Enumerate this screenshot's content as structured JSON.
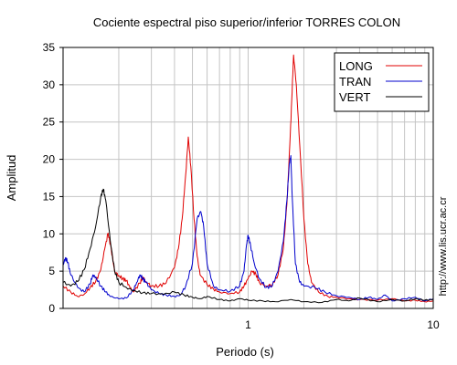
{
  "chart_data": {
    "type": "line",
    "title": "Cociente espectral piso superior/inferior  TORRES COLON",
    "xlabel": "Periodo (s)",
    "ylabel": "Amplitud",
    "x_scale": "log",
    "xlim": [
      0.1,
      10
    ],
    "ylim": [
      0,
      35
    ],
    "yticks": [
      0,
      5,
      10,
      15,
      20,
      25,
      30,
      35
    ],
    "xtick_labels": [
      {
        "value": 1,
        "label": "1"
      },
      {
        "value": 10,
        "label": "10"
      }
    ],
    "grid": true,
    "legend_position": "top-right",
    "series": [
      {
        "name": "LONG",
        "color": "#e00000",
        "points": [
          [
            0.1,
            3.0
          ],
          [
            0.11,
            2.2
          ],
          [
            0.12,
            1.6
          ],
          [
            0.13,
            1.9
          ],
          [
            0.14,
            2.8
          ],
          [
            0.15,
            3.6
          ],
          [
            0.16,
            5.2
          ],
          [
            0.168,
            8.0
          ],
          [
            0.175,
            10.1
          ],
          [
            0.182,
            8.0
          ],
          [
            0.19,
            5.0
          ],
          [
            0.2,
            4.4
          ],
          [
            0.21,
            4.0
          ],
          [
            0.22,
            3.7
          ],
          [
            0.23,
            2.8
          ],
          [
            0.24,
            2.2
          ],
          [
            0.26,
            3.4
          ],
          [
            0.27,
            4.2
          ],
          [
            0.28,
            3.6
          ],
          [
            0.3,
            3.0
          ],
          [
            0.33,
            3.0
          ],
          [
            0.36,
            3.4
          ],
          [
            0.4,
            5.5
          ],
          [
            0.42,
            8.0
          ],
          [
            0.44,
            12.0
          ],
          [
            0.46,
            18.0
          ],
          [
            0.475,
            23.0
          ],
          [
            0.49,
            19.0
          ],
          [
            0.51,
            12.0
          ],
          [
            0.53,
            7.0
          ],
          [
            0.55,
            4.5
          ],
          [
            0.6,
            3.2
          ],
          [
            0.65,
            2.6
          ],
          [
            0.7,
            2.2
          ],
          [
            0.8,
            2.0
          ],
          [
            0.9,
            2.2
          ],
          [
            0.95,
            3.0
          ],
          [
            1.0,
            4.0
          ],
          [
            1.05,
            5.0
          ],
          [
            1.1,
            4.6
          ],
          [
            1.15,
            3.5
          ],
          [
            1.25,
            3.0
          ],
          [
            1.35,
            3.2
          ],
          [
            1.45,
            4.5
          ],
          [
            1.55,
            8.0
          ],
          [
            1.62,
            14.0
          ],
          [
            1.68,
            22.0
          ],
          [
            1.72,
            28.0
          ],
          [
            1.76,
            34.0
          ],
          [
            1.82,
            30.0
          ],
          [
            1.9,
            22.0
          ],
          [
            2.0,
            12.0
          ],
          [
            2.1,
            6.0
          ],
          [
            2.2,
            3.5
          ],
          [
            2.4,
            2.2
          ],
          [
            2.7,
            1.6
          ],
          [
            3.0,
            1.5
          ],
          [
            3.5,
            1.3
          ],
          [
            4.0,
            1.2
          ],
          [
            5.0,
            1.1
          ],
          [
            6.0,
            1.3
          ],
          [
            7.0,
            1.0
          ],
          [
            8.0,
            1.1
          ],
          [
            9.0,
            0.9
          ],
          [
            10.0,
            1.0
          ]
        ]
      },
      {
        "name": "TRAN",
        "color": "#0000cc",
        "points": [
          [
            0.1,
            5.8
          ],
          [
            0.103,
            6.8
          ],
          [
            0.106,
            6.2
          ],
          [
            0.11,
            4.5
          ],
          [
            0.12,
            2.8
          ],
          [
            0.13,
            2.2
          ],
          [
            0.14,
            3.3
          ],
          [
            0.145,
            4.5
          ],
          [
            0.15,
            4.2
          ],
          [
            0.16,
            3.0
          ],
          [
            0.17,
            2.2
          ],
          [
            0.18,
            1.6
          ],
          [
            0.2,
            1.3
          ],
          [
            0.22,
            1.4
          ],
          [
            0.24,
            2.5
          ],
          [
            0.25,
            3.5
          ],
          [
            0.26,
            4.5
          ],
          [
            0.27,
            4.0
          ],
          [
            0.28,
            3.5
          ],
          [
            0.3,
            2.5
          ],
          [
            0.33,
            2.0
          ],
          [
            0.36,
            1.8
          ],
          [
            0.4,
            1.6
          ],
          [
            0.43,
            1.8
          ],
          [
            0.46,
            3.0
          ],
          [
            0.5,
            6.0
          ],
          [
            0.53,
            12.0
          ],
          [
            0.555,
            13.0
          ],
          [
            0.575,
            11.0
          ],
          [
            0.6,
            6.0
          ],
          [
            0.65,
            3.0
          ],
          [
            0.7,
            2.5
          ],
          [
            0.8,
            2.3
          ],
          [
            0.9,
            3.0
          ],
          [
            0.95,
            5.0
          ],
          [
            0.98,
            8.5
          ],
          [
            1.0,
            9.8
          ],
          [
            1.03,
            8.5
          ],
          [
            1.08,
            6.0
          ],
          [
            1.15,
            4.0
          ],
          [
            1.25,
            2.8
          ],
          [
            1.35,
            3.0
          ],
          [
            1.45,
            5.0
          ],
          [
            1.55,
            9.0
          ],
          [
            1.62,
            14.5
          ],
          [
            1.67,
            19.5
          ],
          [
            1.7,
            20.5
          ],
          [
            1.73,
            15.0
          ],
          [
            1.8,
            6.0
          ],
          [
            1.9,
            3.5
          ],
          [
            2.0,
            3.0
          ],
          [
            2.3,
            2.8
          ],
          [
            2.6,
            2.2
          ],
          [
            3.0,
            1.7
          ],
          [
            3.5,
            1.5
          ],
          [
            4.0,
            1.2
          ],
          [
            4.5,
            1.5
          ],
          [
            5.0,
            1.2
          ],
          [
            5.5,
            1.8
          ],
          [
            6.0,
            1.0
          ],
          [
            7.0,
            1.3
          ],
          [
            8.0,
            1.5
          ],
          [
            9.0,
            1.0
          ],
          [
            10.0,
            1.3
          ]
        ]
      },
      {
        "name": "VERT",
        "color": "#000000",
        "points": [
          [
            0.1,
            3.5
          ],
          [
            0.11,
            3.0
          ],
          [
            0.12,
            3.6
          ],
          [
            0.13,
            5.2
          ],
          [
            0.14,
            8.0
          ],
          [
            0.15,
            11.0
          ],
          [
            0.16,
            15.0
          ],
          [
            0.165,
            16.0
          ],
          [
            0.17,
            14.5
          ],
          [
            0.18,
            9.0
          ],
          [
            0.19,
            5.0
          ],
          [
            0.2,
            3.5
          ],
          [
            0.22,
            2.8
          ],
          [
            0.24,
            2.4
          ],
          [
            0.27,
            2.1
          ],
          [
            0.3,
            2.0
          ],
          [
            0.35,
            1.9
          ],
          [
            0.4,
            2.2
          ],
          [
            0.45,
            1.8
          ],
          [
            0.5,
            1.5
          ],
          [
            0.55,
            1.3
          ],
          [
            0.6,
            1.6
          ],
          [
            0.7,
            1.2
          ],
          [
            0.8,
            1.0
          ],
          [
            0.9,
            1.3
          ],
          [
            1.0,
            1.1
          ],
          [
            1.2,
            1.0
          ],
          [
            1.4,
            0.9
          ],
          [
            1.7,
            1.2
          ],
          [
            2.0,
            0.9
          ],
          [
            2.5,
            0.8
          ],
          [
            3.0,
            1.2
          ],
          [
            3.5,
            1.0
          ],
          [
            4.0,
            1.4
          ],
          [
            5.0,
            0.9
          ],
          [
            6.0,
            1.2
          ],
          [
            7.0,
            1.0
          ],
          [
            8.0,
            1.3
          ],
          [
            9.0,
            1.1
          ],
          [
            10.0,
            1.2
          ]
        ]
      }
    ],
    "watermark": "http://www.lis.ucr.ac.cr"
  }
}
